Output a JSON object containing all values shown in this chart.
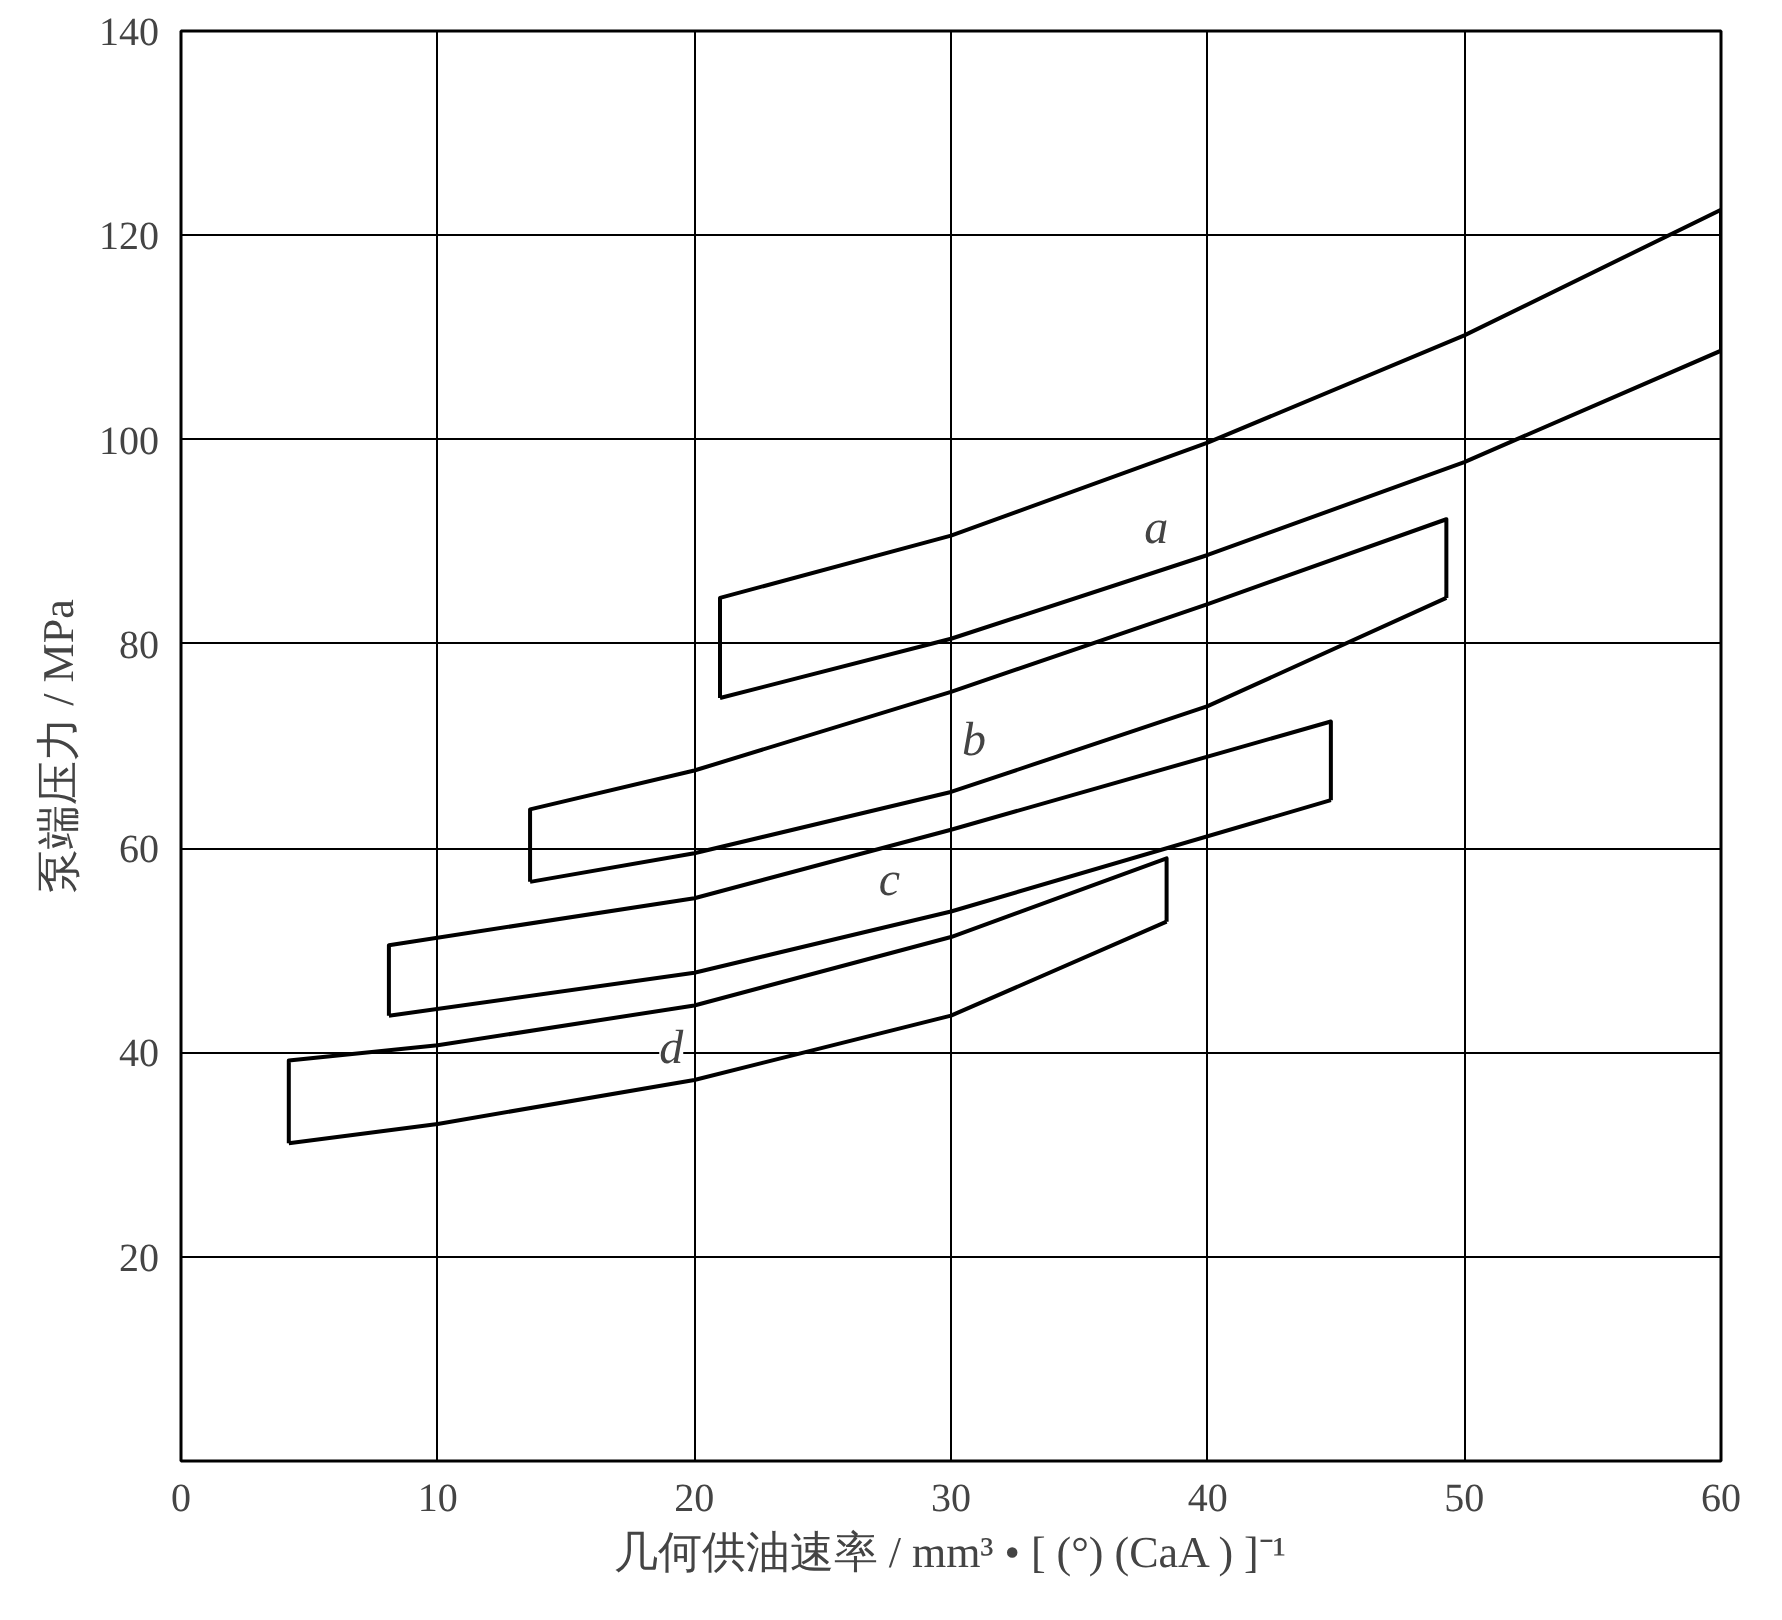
{
  "chart_data": {
    "type": "line",
    "xlabel": "几何供油速率 / mm³ • [ (°) (CaA ) ]⁻¹",
    "ylabel": "泵端压力 / MPa",
    "xlim": [
      0,
      60
    ],
    "ylim": [
      0,
      140
    ],
    "xticks": [
      0,
      10,
      20,
      30,
      40,
      50,
      60
    ],
    "yticks": [
      20,
      40,
      60,
      80,
      100,
      120,
      140
    ],
    "grid": true,
    "series": [
      {
        "color": "#000000",
        "x": [
          21,
          21,
          30,
          40,
          50,
          60,
          60
        ],
        "values": [
          74.7,
          84.5,
          90.6,
          99.7,
          110.2,
          122.5,
          108.7
        ]
      },
      {
        "color": "#000000",
        "x": [
          21,
          30,
          40,
          50,
          60
        ],
        "values": [
          74.7,
          80.5,
          88.7,
          97.8,
          108.7
        ]
      },
      {
        "color": "#000000",
        "x": [
          13.6,
          13.6,
          20,
          30,
          40,
          49.3,
          49.3
        ],
        "values": [
          56.7,
          63.8,
          67.6,
          75.3,
          83.9,
          92.2,
          84.5
        ]
      },
      {
        "color": "#000000",
        "x": [
          13.6,
          20,
          30,
          40,
          49.3
        ],
        "values": [
          56.7,
          59.5,
          65.5,
          73.9,
          84.5
        ]
      },
      {
        "color": "#000000",
        "x": [
          8.1,
          8.1,
          20,
          30,
          44.8,
          44.8
        ],
        "values": [
          43.6,
          50.5,
          55.1,
          61.8,
          72.4,
          64.7
        ]
      },
      {
        "color": "#000000",
        "x": [
          8.1,
          20,
          30,
          44.8
        ],
        "values": [
          43.6,
          47.8,
          53.8,
          64.7
        ]
      },
      {
        "color": "#000000",
        "x": [
          4.2,
          4.2,
          10,
          20,
          30,
          38.4,
          38.4
        ],
        "values": [
          31.1,
          39.2,
          40.7,
          44.6,
          51.3,
          59.0,
          52.8
        ]
      },
      {
        "color": "#000000",
        "x": [
          4.2,
          10,
          20,
          30,
          38.4
        ],
        "values": [
          31.1,
          33.0,
          37.3,
          43.6,
          52.8
        ]
      }
    ],
    "annotations": [
      {
        "text": "a",
        "x": 38,
        "y": 91.2
      },
      {
        "text": "b",
        "x": 30.9,
        "y": 70.5
      },
      {
        "text": "c",
        "x": 27.6,
        "y": 56.8
      },
      {
        "text": "d",
        "x": 19.1,
        "y": 40.3
      }
    ]
  }
}
